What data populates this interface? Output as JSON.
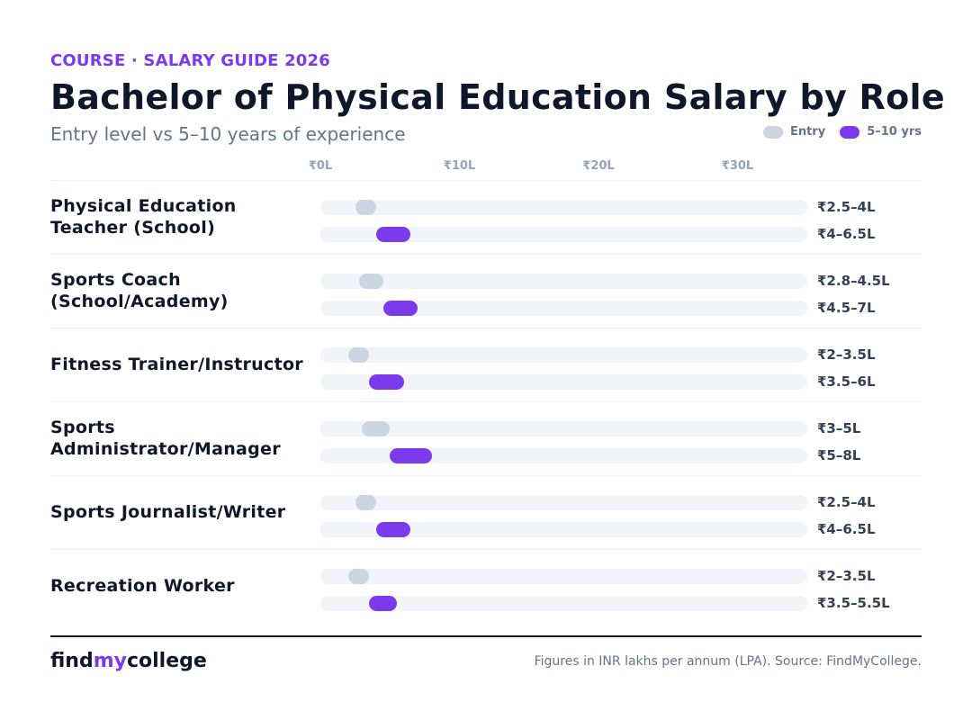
{
  "header": {
    "eyebrow": "COURSE · SALARY GUIDE 2026",
    "title": "Bachelor of Physical Education Salary by Role",
    "subtitle": "Entry level vs 5–10 years of experience"
  },
  "legend": {
    "entry_label": "Entry",
    "senior_label": "5–10 yrs"
  },
  "colors": {
    "entry": "#cbd5e1",
    "senior": "#7c3aed",
    "track": "#f1f4f8",
    "accent": "#7c3aed"
  },
  "footer": {
    "brand_pre": "find",
    "brand_accent": "my",
    "brand_post": "college",
    "source": "Figures in INR lakhs per annum (LPA). Source: FindMyCollege."
  },
  "chart_data": {
    "type": "bar",
    "unit": "INR lakhs per annum",
    "xlim": [
      0,
      35
    ],
    "ticks": [
      {
        "value": 0,
        "label": "₹0L"
      },
      {
        "value": 10,
        "label": "₹10L"
      },
      {
        "value": 20,
        "label": "₹20L"
      },
      {
        "value": 30,
        "label": "₹30L"
      }
    ],
    "rows": [
      {
        "role": "Physical Education Teacher (School)",
        "entry": [
          2.5,
          4
        ],
        "entry_label": "₹2.5–4L",
        "senior": [
          4,
          6.5
        ],
        "senior_label": "₹4–6.5L"
      },
      {
        "role": "Sports Coach (School/Academy)",
        "entry": [
          2.8,
          4.5
        ],
        "entry_label": "₹2.8–4.5L",
        "senior": [
          4.5,
          7
        ],
        "senior_label": "₹4.5–7L"
      },
      {
        "role": "Fitness Trainer/Instructor",
        "entry": [
          2,
          3.5
        ],
        "entry_label": "₹2–3.5L",
        "senior": [
          3.5,
          6
        ],
        "senior_label": "₹3.5–6L"
      },
      {
        "role": "Sports Administrator/Manager",
        "entry": [
          3,
          5
        ],
        "entry_label": "₹3–5L",
        "senior": [
          5,
          8
        ],
        "senior_label": "₹5–8L"
      },
      {
        "role": "Sports Journalist/Writer",
        "entry": [
          2.5,
          4
        ],
        "entry_label": "₹2.5–4L",
        "senior": [
          4,
          6.5
        ],
        "senior_label": "₹4–6.5L"
      },
      {
        "role": "Recreation Worker",
        "entry": [
          2,
          3.5
        ],
        "entry_label": "₹2–3.5L",
        "senior": [
          3.5,
          5.5
        ],
        "senior_label": "₹3.5–5.5L"
      }
    ]
  }
}
